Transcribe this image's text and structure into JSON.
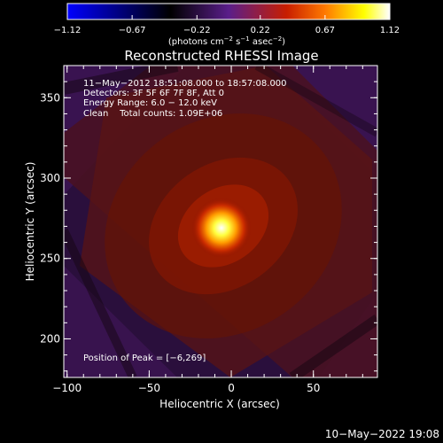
{
  "chart_data": {
    "type": "heatmap",
    "title": "Reconstructed RHESSI Image",
    "colorbar": {
      "unit_base": "(photons cm",
      "unit_exp1": "−2",
      "unit_mid": " s",
      "unit_exp2": "−1",
      "unit_mid2": " asec",
      "unit_exp3": "−2",
      "unit_end": ")",
      "range": [
        -1.12,
        1.12
      ],
      "ticks": [
        "−1.12",
        "−0.67",
        "−0.22",
        "0.22",
        "0.67",
        "1.12"
      ],
      "tick_values": [
        -1.12,
        -0.67,
        -0.22,
        0.22,
        0.67,
        1.12
      ],
      "colors": [
        "#0000ff",
        "#000000",
        "#5a1e8a",
        "#c81e00",
        "#ff7a00",
        "#ffff00",
        "#ffffff"
      ]
    },
    "xlabel": "Heliocentric X (arcsec)",
    "ylabel": "Heliocentric Y (arcsec)",
    "xlim": [
      -102,
      89
    ],
    "ylim": [
      176,
      370
    ],
    "xticks": [
      -100,
      -50,
      0,
      50
    ],
    "xtick_labels": [
      "−100",
      "−50",
      "0",
      "50"
    ],
    "yticks": [
      200,
      250,
      300,
      350
    ],
    "ytick_labels": [
      "200",
      "250",
      "300",
      "350"
    ],
    "info_lines": [
      "11−May−2012 18:51:08.000 to 18:57:08.000",
      "Detectors: 3F 5F 6F 7F 8F, Att 0",
      "Energy Range: 6.0 − 12.0 keV",
      "Clean    Total counts: 1.09E+06"
    ],
    "peak_label": "Position of Peak = [−6,269]",
    "peak": [
      -6,
      269
    ],
    "peak_value": 1.12
  },
  "footer": {
    "timestamp": "10−May−2022 19:08"
  }
}
